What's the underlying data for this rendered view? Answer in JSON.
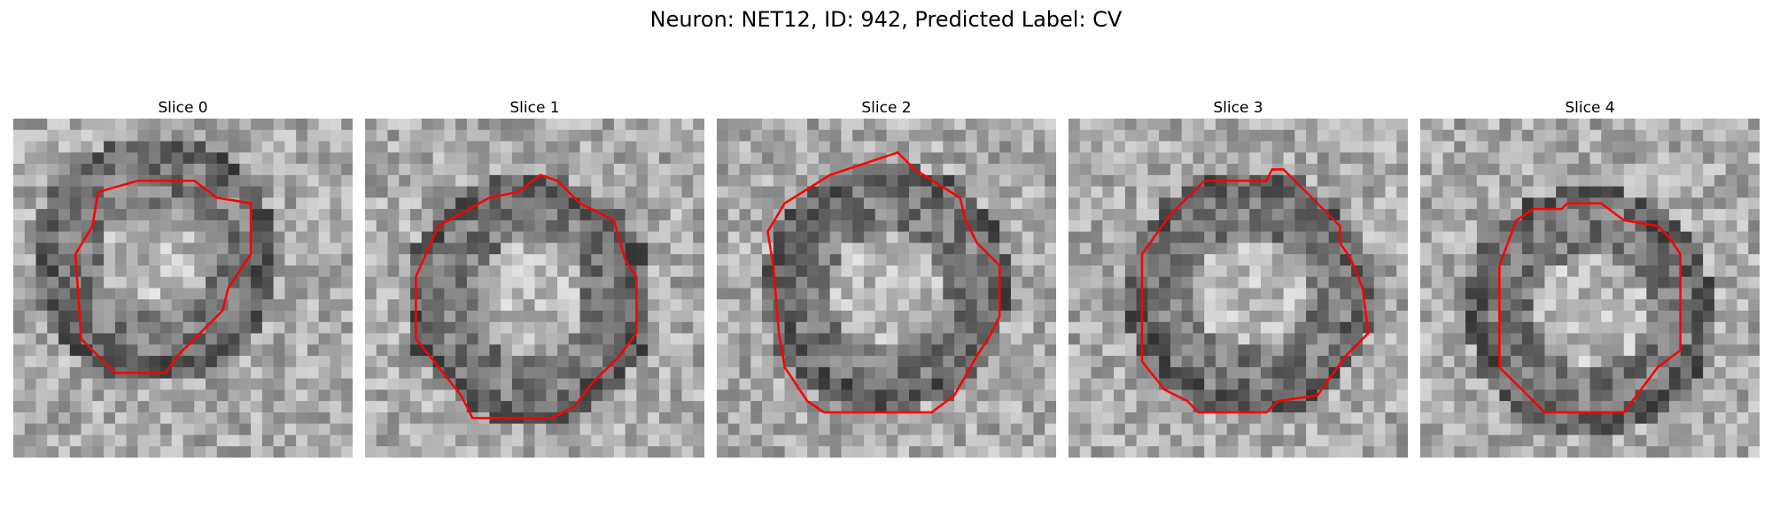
{
  "figure": {
    "title": "Neuron: NET12, ID: 942, Predicted Label: CV"
  },
  "slices": [
    {
      "title": "Slice 0"
    },
    {
      "title": "Slice 1"
    },
    {
      "title": "Slice 2"
    },
    {
      "title": "Slice 3"
    },
    {
      "title": "Slice 4"
    }
  ],
  "colors": {
    "contour": "#ff0000",
    "background": "#ffffff"
  }
}
